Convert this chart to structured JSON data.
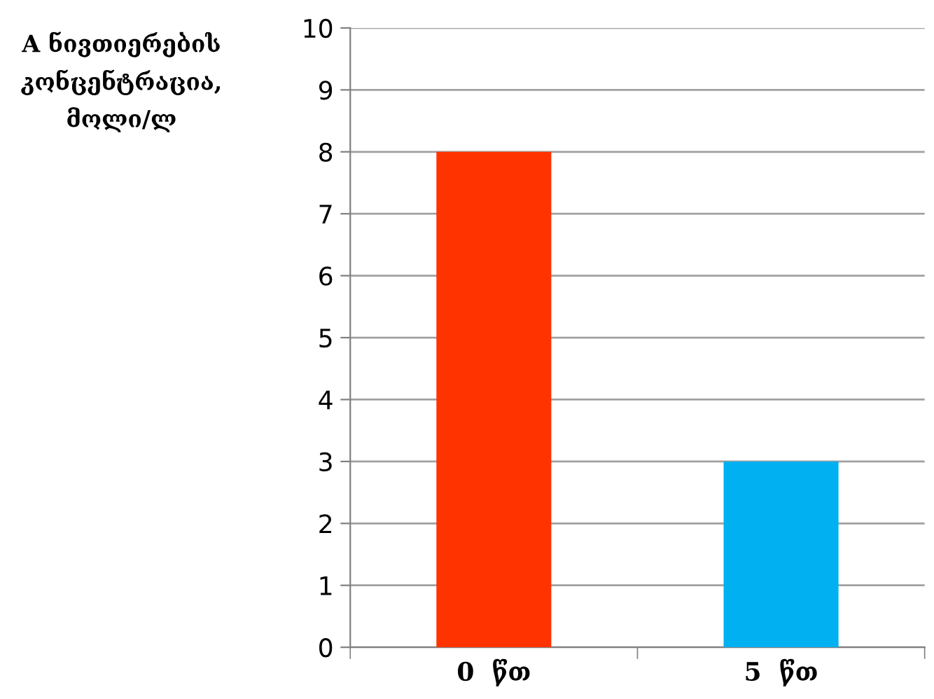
{
  "chart_data": {
    "type": "bar",
    "ylabel": "A ნივთიერების\nკონცენტრაცია,\nმოლი/ლ",
    "categories": [
      "0  წთ",
      "5  წთ"
    ],
    "values": [
      8,
      3
    ],
    "colors": [
      "#ff3300",
      "#00b0f0"
    ],
    "ylim": [
      0,
      10
    ],
    "yticks": [
      0,
      1,
      2,
      3,
      4,
      5,
      6,
      7,
      8,
      9,
      10
    ],
    "grid": "y",
    "legend": false
  }
}
